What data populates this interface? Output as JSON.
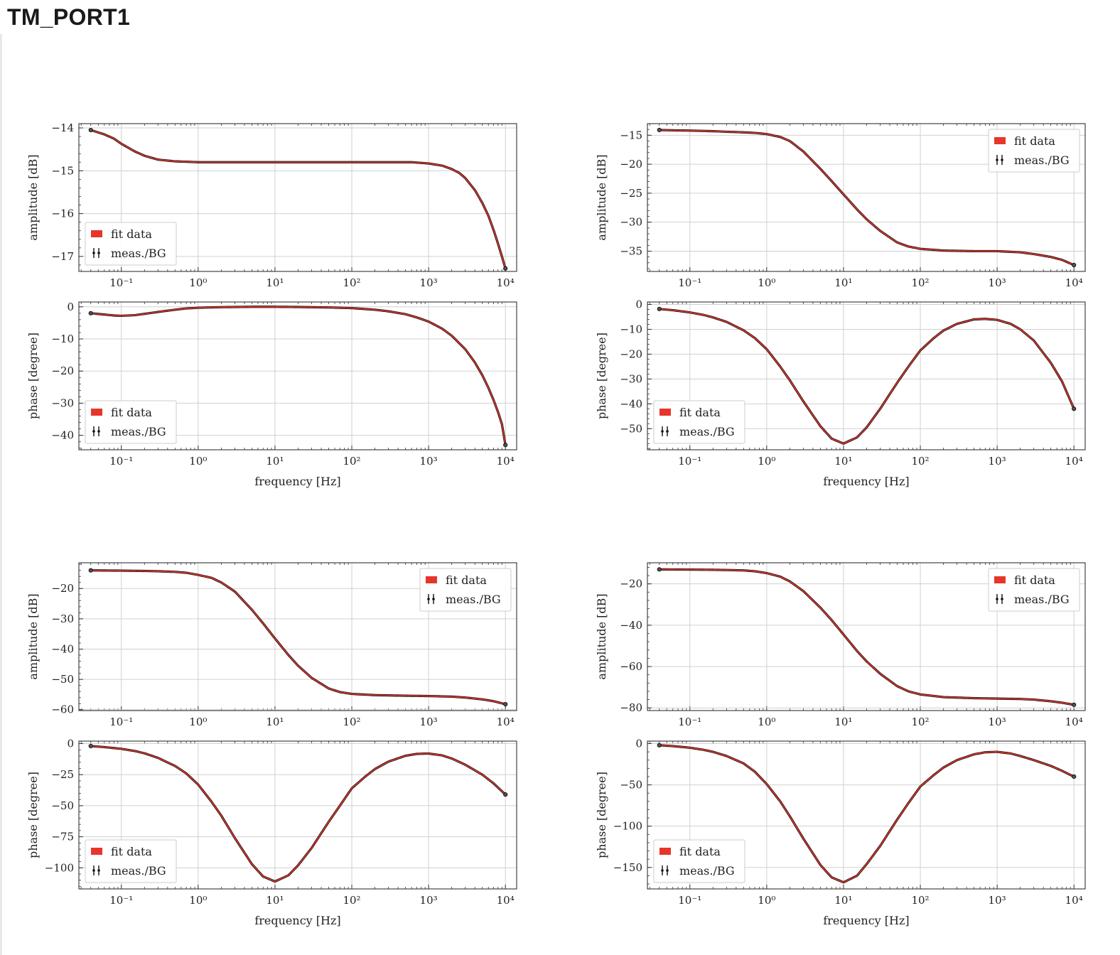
{
  "page": {
    "title": "TM_PORT1"
  },
  "legend": {
    "fit_label": "fit data",
    "meas_label": "meas./BG"
  },
  "colors": {
    "fit": "#e8352b",
    "meas": "#111111",
    "grid": "#d0d0d0",
    "axis": "#333333"
  },
  "chart_data": [
    {
      "id": "top-left",
      "type": "line",
      "xlabel": "frequency [Hz]",
      "xscale": "log",
      "xlim": [
        0.028,
        14000
      ],
      "xticks": [
        0.1,
        1,
        10,
        100,
        1000,
        10000
      ],
      "xtick_labels": [
        "10^-1",
        "10^0",
        "10^1",
        "10^2",
        "10^3",
        "10^4"
      ],
      "subplots": [
        {
          "role": "amplitude",
          "ylabel": "amplitude [dB]",
          "ylim": [
            -17.35,
            -13.9
          ],
          "yticks": [
            -14,
            -15,
            -16,
            -17
          ],
          "ytick_labels": [
            "−14",
            "−15",
            "−16",
            "−17"
          ],
          "legend_position": "lower-left",
          "series": [
            {
              "name": "fit data",
              "x": [
                0.04,
                0.06,
                0.08,
                0.1,
                0.15,
                0.2,
                0.3,
                0.5,
                0.7,
                1,
                2,
                5,
                10,
                30,
                100,
                300,
                600,
                1000,
                1500,
                2000,
                2500,
                3000,
                4000,
                5000,
                6000,
                7000,
                8000,
                9000,
                10000
              ],
              "y": [
                -14.05,
                -14.15,
                -14.25,
                -14.37,
                -14.55,
                -14.65,
                -14.74,
                -14.78,
                -14.79,
                -14.8,
                -14.8,
                -14.8,
                -14.8,
                -14.8,
                -14.8,
                -14.8,
                -14.8,
                -14.83,
                -14.88,
                -14.96,
                -15.05,
                -15.17,
                -15.45,
                -15.75,
                -16.05,
                -16.38,
                -16.7,
                -17.0,
                -17.28
              ]
            }
          ]
        },
        {
          "role": "phase",
          "ylabel": "phase [degree]",
          "ylim": [
            -44.5,
            1.5
          ],
          "yticks": [
            0,
            -10,
            -20,
            -30,
            -40
          ],
          "ytick_labels": [
            "0",
            "−10",
            "−20",
            "−30",
            "−40"
          ],
          "legend_position": "lower-left",
          "series": [
            {
              "name": "fit data",
              "x": [
                0.04,
                0.06,
                0.08,
                0.1,
                0.15,
                0.2,
                0.3,
                0.5,
                0.7,
                1,
                2,
                5,
                10,
                20,
                50,
                100,
                200,
                300,
                500,
                700,
                1000,
                1500,
                2000,
                3000,
                4000,
                5000,
                6000,
                7000,
                8000,
                9000,
                10000
              ],
              "y": [
                -2.0,
                -2.4,
                -2.7,
                -2.8,
                -2.6,
                -2.2,
                -1.6,
                -0.9,
                -0.5,
                -0.3,
                -0.1,
                0,
                0,
                -0.05,
                -0.2,
                -0.4,
                -0.9,
                -1.4,
                -2.3,
                -3.3,
                -4.6,
                -6.8,
                -9.0,
                -13.2,
                -17.3,
                -21.3,
                -25.2,
                -29.0,
                -32.7,
                -36.5,
                -43.0
              ]
            }
          ]
        }
      ]
    },
    {
      "id": "top-right",
      "type": "line",
      "xlabel": "frequency [Hz]",
      "xscale": "log",
      "xlim": [
        0.028,
        14000
      ],
      "xticks": [
        0.1,
        1,
        10,
        100,
        1000,
        10000
      ],
      "xtick_labels": [
        "10^-1",
        "10^0",
        "10^1",
        "10^2",
        "10^3",
        "10^4"
      ],
      "subplots": [
        {
          "role": "amplitude",
          "ylabel": "amplitude [dB]",
          "ylim": [
            -38.5,
            -13.0
          ],
          "yticks": [
            -15,
            -20,
            -25,
            -30,
            -35
          ],
          "ytick_labels": [
            "−15",
            "−20",
            "−25",
            "−30",
            "−35"
          ],
          "legend_position": "upper-right",
          "series": [
            {
              "name": "fit data",
              "x": [
                0.04,
                0.06,
                0.1,
                0.2,
                0.3,
                0.5,
                0.7,
                1,
                1.5,
                2,
                3,
                5,
                7,
                10,
                15,
                20,
                30,
                50,
                70,
                100,
                200,
                500,
                1000,
                2000,
                3000,
                5000,
                7000,
                10000
              ],
              "y": [
                -14.1,
                -14.15,
                -14.2,
                -14.3,
                -14.4,
                -14.5,
                -14.6,
                -14.8,
                -15.3,
                -16.0,
                -17.8,
                -20.8,
                -22.9,
                -25.2,
                -27.8,
                -29.5,
                -31.5,
                -33.5,
                -34.2,
                -34.6,
                -34.9,
                -35.0,
                -35.0,
                -35.2,
                -35.5,
                -36.0,
                -36.5,
                -37.4
              ]
            }
          ]
        },
        {
          "role": "phase",
          "ylabel": "phase [degree]",
          "ylim": [
            -58.5,
            1.0
          ],
          "yticks": [
            0,
            -10,
            -20,
            -30,
            -40,
            -50
          ],
          "ytick_labels": [
            "0",
            "−10",
            "−20",
            "−30",
            "−40",
            "−50"
          ],
          "legend_position": "lower-left",
          "series": [
            {
              "name": "fit data",
              "x": [
                0.04,
                0.06,
                0.1,
                0.15,
                0.2,
                0.3,
                0.5,
                0.7,
                1,
                1.5,
                2,
                3,
                5,
                7,
                10,
                15,
                20,
                30,
                50,
                70,
                100,
                150,
                200,
                300,
                500,
                700,
                1000,
                1500,
                2000,
                3000,
                5000,
                7000,
                10000
              ],
              "y": [
                -1.8,
                -2.3,
                -3.2,
                -4.2,
                -5.2,
                -7.0,
                -10.4,
                -13.5,
                -18.0,
                -25.0,
                -30.5,
                -39.0,
                -49.0,
                -54.0,
                -56.0,
                -53.5,
                -49.5,
                -42.0,
                -31.5,
                -25.0,
                -18.5,
                -13.5,
                -10.5,
                -7.8,
                -6.0,
                -5.8,
                -6.2,
                -7.8,
                -10.0,
                -14.5,
                -23.5,
                -31.0,
                -42.0
              ]
            }
          ]
        }
      ]
    },
    {
      "id": "bottom-left",
      "type": "line",
      "xlabel": "frequency [Hz]",
      "xscale": "log",
      "xlim": [
        0.028,
        14000
      ],
      "xticks": [
        0.1,
        1,
        10,
        100,
        1000,
        10000
      ],
      "xtick_labels": [
        "10^-1",
        "10^0",
        "10^1",
        "10^2",
        "10^3",
        "10^4"
      ],
      "subplots": [
        {
          "role": "amplitude",
          "ylabel": "amplitude [dB]",
          "ylim": [
            -60.3,
            -11.5
          ],
          "yticks": [
            -20,
            -30,
            -40,
            -50,
            -60
          ],
          "ytick_labels": [
            "−20",
            "−30",
            "−40",
            "−50",
            "−60"
          ],
          "legend_position": "upper-right",
          "series": [
            {
              "name": "fit data",
              "x": [
                0.04,
                0.06,
                0.1,
                0.2,
                0.3,
                0.5,
                0.7,
                1,
                1.5,
                2,
                3,
                5,
                7,
                10,
                15,
                20,
                30,
                50,
                70,
                100,
                200,
                500,
                1000,
                2000,
                3000,
                5000,
                7000,
                10000
              ],
              "y": [
                -14.0,
                -14.05,
                -14.1,
                -14.2,
                -14.3,
                -14.5,
                -14.8,
                -15.5,
                -16.5,
                -18.0,
                -21.0,
                -27.0,
                -31.5,
                -36.5,
                -42.0,
                -45.5,
                -49.5,
                -53.0,
                -54.2,
                -54.8,
                -55.2,
                -55.4,
                -55.5,
                -55.7,
                -56.0,
                -56.6,
                -57.2,
                -58.2
              ]
            }
          ]
        },
        {
          "role": "phase",
          "ylabel": "phase [degree]",
          "ylim": [
            -117.0,
            2.0
          ],
          "yticks": [
            0,
            -25,
            -50,
            -75,
            -100
          ],
          "ytick_labels": [
            "0",
            "−25",
            "−50",
            "−75",
            "−100"
          ],
          "legend_position": "lower-left",
          "series": [
            {
              "name": "fit data",
              "x": [
                0.04,
                0.06,
                0.1,
                0.15,
                0.2,
                0.3,
                0.5,
                0.7,
                1,
                1.5,
                2,
                3,
                5,
                7,
                10,
                15,
                20,
                30,
                50,
                70,
                100,
                150,
                200,
                300,
                500,
                700,
                1000,
                1500,
                2000,
                3000,
                5000,
                7000,
                10000
              ],
              "y": [
                -2.0,
                -2.8,
                -4.2,
                -6.0,
                -7.8,
                -11.5,
                -18.0,
                -24.0,
                -33.0,
                -47.0,
                -58.0,
                -76.0,
                -97.0,
                -107.0,
                -111.0,
                -106.0,
                -98.0,
                -84.0,
                -63.0,
                -50.0,
                -36.0,
                -26.5,
                -20.5,
                -14.5,
                -9.8,
                -8.3,
                -8.0,
                -9.5,
                -12.0,
                -17.0,
                -25.0,
                -32.0,
                -41.0
              ]
            }
          ]
        }
      ]
    },
    {
      "id": "bottom-right",
      "type": "line",
      "xlabel": "frequency [Hz]",
      "xscale": "log",
      "xlim": [
        0.028,
        14000
      ],
      "xticks": [
        0.1,
        1,
        10,
        100,
        1000,
        10000
      ],
      "xtick_labels": [
        "10^-1",
        "10^0",
        "10^1",
        "10^2",
        "10^3",
        "10^4"
      ],
      "subplots": [
        {
          "role": "amplitude",
          "ylabel": "amplitude [dB]",
          "ylim": [
            -81.3,
            -9.8
          ],
          "yticks": [
            -20,
            -40,
            -60,
            -80
          ],
          "ytick_labels": [
            "−20",
            "−40",
            "−60",
            "−80"
          ],
          "legend_position": "upper-right",
          "series": [
            {
              "name": "fit data",
              "x": [
                0.04,
                0.06,
                0.1,
                0.2,
                0.3,
                0.5,
                0.7,
                1,
                1.5,
                2,
                3,
                5,
                7,
                10,
                15,
                20,
                30,
                50,
                70,
                100,
                200,
                500,
                1000,
                2000,
                3000,
                5000,
                7000,
                10000
              ],
              "y": [
                -13.0,
                -13.05,
                -13.1,
                -13.2,
                -13.3,
                -13.5,
                -13.9,
                -14.8,
                -16.5,
                -18.8,
                -23.5,
                -31.5,
                -37.5,
                -44.5,
                -52.5,
                -57.5,
                -63.5,
                -69.5,
                -72.0,
                -73.5,
                -74.8,
                -75.3,
                -75.5,
                -75.7,
                -76.0,
                -76.8,
                -77.5,
                -78.5
              ]
            }
          ]
        },
        {
          "role": "phase",
          "ylabel": "phase [degree]",
          "ylim": [
            -176.0,
            3.0
          ],
          "yticks": [
            0,
            -50,
            -100,
            -150
          ],
          "ytick_labels": [
            "0",
            "−50",
            "−100",
            "−150"
          ],
          "legend_position": "lower-left",
          "series": [
            {
              "name": "fit data",
              "x": [
                0.04,
                0.06,
                0.1,
                0.15,
                0.2,
                0.3,
                0.5,
                0.7,
                1,
                1.5,
                2,
                3,
                5,
                7,
                10,
                15,
                20,
                30,
                50,
                70,
                100,
                150,
                200,
                300,
                500,
                700,
                1000,
                1500,
                2000,
                3000,
                5000,
                7000,
                10000
              ],
              "y": [
                -2.0,
                -3.0,
                -5.0,
                -7.5,
                -10.0,
                -15.0,
                -24.0,
                -34.0,
                -49.0,
                -70.0,
                -88.0,
                -115.0,
                -147.0,
                -162.0,
                -168.0,
                -160.0,
                -146.0,
                -124.0,
                -92.0,
                -72.0,
                -52.0,
                -38.0,
                -29.0,
                -20.0,
                -13.0,
                -10.5,
                -10.0,
                -12.0,
                -15.0,
                -20.0,
                -27.0,
                -33.0,
                -40.0
              ]
            }
          ]
        }
      ]
    }
  ]
}
